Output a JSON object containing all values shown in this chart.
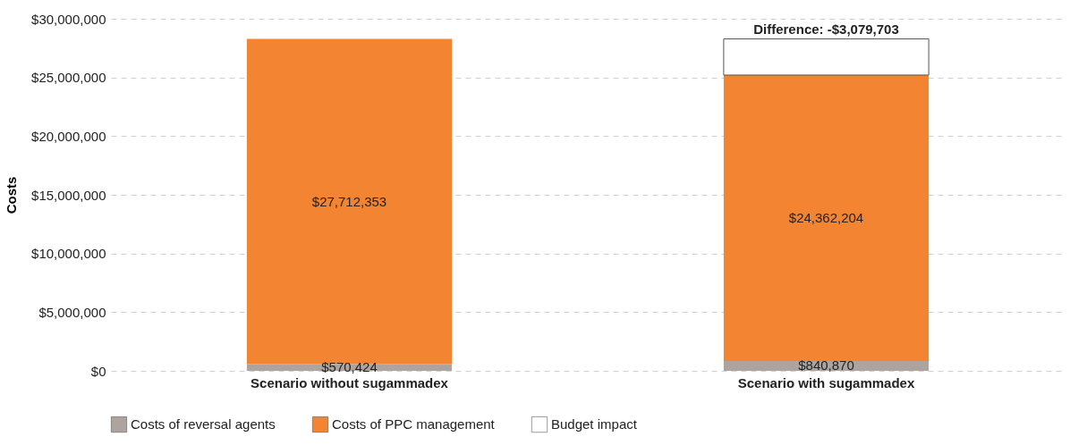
{
  "chart_data": {
    "type": "bar",
    "ylabel": "Costs",
    "categories": [
      "Scenario without sugammadex",
      "Scenario with sugammadex"
    ],
    "stacked": true,
    "series": [
      {
        "name": "Costs of reversal agents",
        "color": "#ada49f",
        "values": [
          570424,
          840870
        ],
        "value_labels": [
          "$570,424",
          "$840,870"
        ]
      },
      {
        "name": "Costs of PPC management",
        "color": "#f28432",
        "values": [
          27712353,
          24362204
        ],
        "value_labels": [
          "$27,712,353",
          "$24,362,204"
        ]
      },
      {
        "name": "Budget impact",
        "color": "#ffffff",
        "values": [
          null,
          3079703
        ]
      }
    ],
    "annotations": [
      {
        "text": "Difference: -$3,079,703",
        "x": "Scenario with sugammadex",
        "y": 28282777
      }
    ],
    "ylim": [
      0,
      30000000
    ],
    "yticks": [
      {
        "value": 0,
        "label": "$0"
      },
      {
        "value": 5000000,
        "label": "$5,000,000"
      },
      {
        "value": 10000000,
        "label": "$10,000,000"
      },
      {
        "value": 15000000,
        "label": "$15,000,000"
      },
      {
        "value": 20000000,
        "label": "$20,000,000"
      },
      {
        "value": 25000000,
        "label": "$25,000,000"
      },
      {
        "value": 30000000,
        "label": "$30,000,000"
      }
    ],
    "grid": "y",
    "legend": "bottom"
  }
}
